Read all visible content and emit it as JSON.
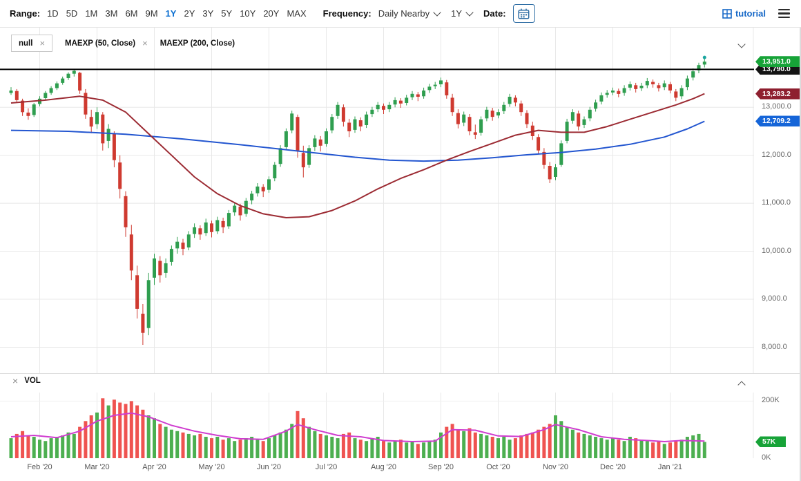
{
  "toolbar": {
    "range_label": "Range:",
    "ranges": [
      "1D",
      "5D",
      "1M",
      "3M",
      "6M",
      "9M",
      "1Y",
      "2Y",
      "3Y",
      "5Y",
      "10Y",
      "20Y",
      "MAX"
    ],
    "active_range": "1Y",
    "frequency_label": "Frequency:",
    "frequency_value": "Daily Nearby",
    "period_value": "1Y",
    "date_label": "Date:",
    "tutorial_label": "tutorial"
  },
  "studies": {
    "main": [
      {
        "label": "null",
        "boxed": true,
        "close": true
      },
      {
        "label": "MAEXP (50, Close)",
        "boxed": false,
        "close": true
      },
      {
        "label": "MAEXP (200, Close)",
        "boxed": false,
        "close": false
      }
    ],
    "volume_label": "VOL"
  },
  "badges": {
    "last_price": {
      "label": "13,951.0",
      "value": 13951,
      "color": "#17a338"
    },
    "hline": {
      "label": "13,790.0",
      "value": 13790,
      "color": "#141414"
    },
    "ma50": {
      "label": "13,283.2",
      "value": 13283.2,
      "color": "#8e1f2f"
    },
    "ma200": {
      "label": "12,709.2",
      "value": 12709.2,
      "color": "#1565d8"
    },
    "volume": {
      "label": "57K",
      "value": 57,
      "color": "#17a338"
    }
  },
  "colors": {
    "up": "#2f9e4f",
    "down": "#cf3a30",
    "vol_up": "#4caf50",
    "vol_down": "#ef5350",
    "ma50": "#9c2b33",
    "ma200": "#2356d0",
    "vol_ma": "#cf3ccf",
    "hline": "#000000",
    "grid": "#e8e8e8",
    "axis_text": "#555555"
  },
  "chart_data": {
    "type": "candlestick",
    "title": "",
    "ylim": [
      7460,
      14660
    ],
    "vol_ylim": [
      0,
      230
    ],
    "hline": 13790,
    "y_ticks": [
      {
        "v": 13000,
        "label": "13,000.0"
      },
      {
        "v": 12000,
        "label": "12,000.0"
      },
      {
        "v": 11000,
        "label": "11,000.0"
      },
      {
        "v": 10000,
        "label": "10,000.0"
      },
      {
        "v": 9000,
        "label": "9,000.0"
      },
      {
        "v": 8000,
        "label": "8,000.0"
      }
    ],
    "vol_ticks": [
      {
        "v": 200,
        "label": "200K"
      },
      {
        "v": 0,
        "label": "0K"
      }
    ],
    "x_ticks": [
      {
        "i": 5,
        "label": "Feb '20"
      },
      {
        "i": 15,
        "label": "Mar '20"
      },
      {
        "i": 25,
        "label": "Apr '20"
      },
      {
        "i": 35,
        "label": "May '20"
      },
      {
        "i": 45,
        "label": "Jun '20"
      },
      {
        "i": 55,
        "label": "Jul '20"
      },
      {
        "i": 65,
        "label": "Aug '20"
      },
      {
        "i": 75,
        "label": "Sep '20"
      },
      {
        "i": 85,
        "label": "Oct '20"
      },
      {
        "i": 95,
        "label": "Nov '20"
      },
      {
        "i": 105,
        "label": "Dec '20"
      },
      {
        "i": 115,
        "label": "Jan '21"
      }
    ],
    "candles": [
      [
        13300,
        13420,
        13260,
        13350
      ],
      [
        13340,
        13380,
        13100,
        13150
      ],
      [
        13140,
        13180,
        12820,
        12900
      ],
      [
        12890,
        12980,
        12740,
        12820
      ],
      [
        12840,
        13090,
        12800,
        13060
      ],
      [
        13070,
        13230,
        13020,
        13180
      ],
      [
        13190,
        13340,
        13150,
        13300
      ],
      [
        13300,
        13440,
        13260,
        13400
      ],
      [
        13400,
        13540,
        13360,
        13500
      ],
      [
        13510,
        13640,
        13470,
        13600
      ],
      [
        13610,
        13730,
        13570,
        13700
      ],
      [
        13700,
        13790,
        13640,
        13760
      ],
      [
        13720,
        13740,
        13280,
        13350
      ],
      [
        13300,
        13380,
        12760,
        12850
      ],
      [
        12800,
        12950,
        12460,
        12600
      ],
      [
        12650,
        13000,
        12550,
        12900
      ],
      [
        12850,
        12900,
        12100,
        12250
      ],
      [
        12300,
        12650,
        12150,
        12550
      ],
      [
        12450,
        12500,
        11750,
        11900
      ],
      [
        11850,
        12000,
        11100,
        11300
      ],
      [
        11150,
        11250,
        10300,
        10500
      ],
      [
        10350,
        10550,
        9400,
        9600
      ],
      [
        9500,
        9700,
        8600,
        8800
      ],
      [
        8700,
        8900,
        8050,
        8300
      ],
      [
        8400,
        9550,
        8250,
        9400
      ],
      [
        9450,
        9950,
        9300,
        9850
      ],
      [
        9800,
        9900,
        9350,
        9500
      ],
      [
        9550,
        9850,
        9450,
        9750
      ],
      [
        9780,
        10120,
        9700,
        10050
      ],
      [
        10060,
        10300,
        9950,
        10200
      ],
      [
        10180,
        10260,
        9920,
        10050
      ],
      [
        10080,
        10420,
        10020,
        10350
      ],
      [
        10360,
        10580,
        10280,
        10500
      ],
      [
        10480,
        10540,
        10240,
        10350
      ],
      [
        10380,
        10680,
        10320,
        10600
      ],
      [
        10580,
        10640,
        10290,
        10400
      ],
      [
        10420,
        10720,
        10360,
        10650
      ],
      [
        10630,
        10700,
        10380,
        10500
      ],
      [
        10520,
        10860,
        10470,
        10800
      ],
      [
        10810,
        11020,
        10740,
        10950
      ],
      [
        10930,
        10990,
        10640,
        10750
      ],
      [
        10780,
        11110,
        10720,
        11050
      ],
      [
        11060,
        11260,
        10980,
        11200
      ],
      [
        11210,
        11420,
        11140,
        11350
      ],
      [
        11340,
        11400,
        11130,
        11250
      ],
      [
        11280,
        11560,
        11220,
        11500
      ],
      [
        11520,
        11860,
        11460,
        11800
      ],
      [
        11820,
        12210,
        11760,
        12150
      ],
      [
        12170,
        12560,
        12110,
        12500
      ],
      [
        12520,
        12930,
        12460,
        12870
      ],
      [
        12800,
        12850,
        11950,
        12100
      ],
      [
        12050,
        12200,
        11540,
        11750
      ],
      [
        11800,
        12210,
        11740,
        12150
      ],
      [
        12170,
        12420,
        12090,
        12350
      ],
      [
        12330,
        12400,
        12080,
        12200
      ],
      [
        12240,
        12560,
        12180,
        12500
      ],
      [
        12520,
        12860,
        12460,
        12800
      ],
      [
        12820,
        13110,
        12760,
        13050
      ],
      [
        13000,
        13060,
        12600,
        12700
      ],
      [
        12680,
        12760,
        12380,
        12500
      ],
      [
        12530,
        12810,
        12470,
        12750
      ],
      [
        12730,
        12790,
        12500,
        12600
      ],
      [
        12630,
        12910,
        12570,
        12850
      ],
      [
        12860,
        13010,
        12800,
        12950
      ],
      [
        12960,
        13110,
        12900,
        13050
      ],
      [
        13030,
        13080,
        12860,
        12950
      ],
      [
        12960,
        13110,
        12900,
        13050
      ],
      [
        13060,
        13210,
        13000,
        13150
      ],
      [
        13140,
        13190,
        12990,
        13080
      ],
      [
        13090,
        13260,
        13040,
        13200
      ],
      [
        13210,
        13340,
        13150,
        13280
      ],
      [
        13270,
        13320,
        13130,
        13220
      ],
      [
        13230,
        13410,
        13180,
        13350
      ],
      [
        13360,
        13490,
        13300,
        13430
      ],
      [
        13440,
        13530,
        13380,
        13470
      ],
      [
        13480,
        13620,
        13420,
        13560
      ],
      [
        13520,
        13570,
        13180,
        13250
      ],
      [
        13200,
        13280,
        12820,
        12900
      ],
      [
        12880,
        12960,
        12560,
        12650
      ],
      [
        12680,
        12910,
        12610,
        12850
      ],
      [
        12800,
        12860,
        12420,
        12500
      ],
      [
        12480,
        12640,
        12340,
        12430
      ],
      [
        12470,
        12810,
        12410,
        12750
      ],
      [
        12770,
        13010,
        12710,
        12950
      ],
      [
        12930,
        12990,
        12720,
        12800
      ],
      [
        12830,
        12960,
        12770,
        12900
      ],
      [
        12920,
        13110,
        12860,
        13050
      ],
      [
        13070,
        13280,
        13010,
        13220
      ],
      [
        13200,
        13250,
        13020,
        13100
      ],
      [
        13080,
        13140,
        12820,
        12900
      ],
      [
        12880,
        12940,
        12570,
        12650
      ],
      [
        12620,
        12700,
        12320,
        12400
      ],
      [
        12380,
        12440,
        12020,
        12100
      ],
      [
        12070,
        12150,
        11720,
        11800
      ],
      [
        11780,
        11860,
        11420,
        11500
      ],
      [
        11550,
        11820,
        11480,
        11750
      ],
      [
        11800,
        12310,
        11760,
        12250
      ],
      [
        12300,
        12760,
        12250,
        12700
      ],
      [
        12720,
        12960,
        12660,
        12900
      ],
      [
        12870,
        12930,
        12520,
        12600
      ],
      [
        12630,
        12810,
        12570,
        12750
      ],
      [
        12770,
        13010,
        12710,
        12950
      ],
      [
        12970,
        13160,
        12910,
        13100
      ],
      [
        13120,
        13310,
        13060,
        13250
      ],
      [
        13260,
        13360,
        13200,
        13300
      ],
      [
        13310,
        13410,
        13250,
        13350
      ],
      [
        13340,
        13390,
        13210,
        13280
      ],
      [
        13300,
        13460,
        13240,
        13400
      ],
      [
        13410,
        13540,
        13350,
        13480
      ],
      [
        13460,
        13510,
        13310,
        13380
      ],
      [
        13400,
        13510,
        13340,
        13450
      ],
      [
        13460,
        13610,
        13400,
        13550
      ],
      [
        13530,
        13580,
        13410,
        13480
      ],
      [
        13460,
        13510,
        13330,
        13400
      ],
      [
        13420,
        13560,
        13360,
        13500
      ],
      [
        13480,
        13530,
        13290,
        13350
      ],
      [
        13330,
        13380,
        13130,
        13200
      ],
      [
        13230,
        13460,
        13170,
        13400
      ],
      [
        13420,
        13660,
        13360,
        13600
      ],
      [
        13620,
        13810,
        13560,
        13750
      ],
      [
        13770,
        13930,
        13710,
        13880
      ],
      [
        13890,
        14010,
        13830,
        13951
      ]
    ],
    "volumes": [
      70,
      85,
      95,
      80,
      75,
      65,
      60,
      70,
      75,
      80,
      90,
      85,
      110,
      130,
      150,
      160,
      210,
      185,
      205,
      195,
      190,
      200,
      185,
      170,
      150,
      140,
      120,
      110,
      100,
      95,
      90,
      85,
      80,
      85,
      75,
      70,
      75,
      65,
      70,
      60,
      65,
      70,
      75,
      65,
      60,
      70,
      80,
      90,
      100,
      120,
      165,
      140,
      110,
      95,
      85,
      80,
      75,
      70,
      85,
      90,
      70,
      65,
      60,
      70,
      75,
      60,
      55,
      60,
      65,
      55,
      60,
      50,
      55,
      60,
      65,
      90,
      110,
      120,
      100,
      95,
      105,
      90,
      85,
      80,
      75,
      70,
      75,
      65,
      70,
      80,
      85,
      90,
      100,
      110,
      120,
      150,
      130,
      110,
      100,
      90,
      85,
      80,
      75,
      70,
      65,
      70,
      65,
      60,
      75,
      70,
      65,
      60,
      55,
      60,
      50,
      55,
      60,
      65,
      75,
      80,
      85,
      57
    ],
    "ma50": {
      "label": "MAEXP (50, Close)",
      "points": [
        [
          0,
          13090
        ],
        [
          6,
          13150
        ],
        [
          12,
          13230
        ],
        [
          16,
          13150
        ],
        [
          20,
          12900
        ],
        [
          24,
          12450
        ],
        [
          28,
          12000
        ],
        [
          32,
          11550
        ],
        [
          36,
          11200
        ],
        [
          40,
          10950
        ],
        [
          44,
          10780
        ],
        [
          48,
          10700
        ],
        [
          52,
          10720
        ],
        [
          56,
          10850
        ],
        [
          60,
          11050
        ],
        [
          64,
          11300
        ],
        [
          68,
          11520
        ],
        [
          72,
          11700
        ],
        [
          76,
          11900
        ],
        [
          80,
          12080
        ],
        [
          84,
          12250
        ],
        [
          88,
          12420
        ],
        [
          92,
          12520
        ],
        [
          96,
          12480
        ],
        [
          100,
          12480
        ],
        [
          104,
          12600
        ],
        [
          108,
          12750
        ],
        [
          112,
          12900
        ],
        [
          116,
          13050
        ],
        [
          119,
          13180
        ],
        [
          121,
          13283
        ]
      ]
    },
    "ma200": {
      "label": "MAEXP (200, Close)",
      "points": [
        [
          0,
          12520
        ],
        [
          10,
          12500
        ],
        [
          20,
          12440
        ],
        [
          30,
          12340
        ],
        [
          40,
          12220
        ],
        [
          50,
          12090
        ],
        [
          60,
          11960
        ],
        [
          66,
          11900
        ],
        [
          72,
          11880
        ],
        [
          78,
          11900
        ],
        [
          84,
          11950
        ],
        [
          90,
          12010
        ],
        [
          96,
          12060
        ],
        [
          102,
          12130
        ],
        [
          108,
          12230
        ],
        [
          114,
          12380
        ],
        [
          118,
          12550
        ],
        [
          121,
          12709
        ]
      ]
    },
    "vol_ma": {
      "points": [
        [
          0,
          75
        ],
        [
          4,
          80
        ],
        [
          8,
          72
        ],
        [
          12,
          95
        ],
        [
          15,
          130
        ],
        [
          18,
          150
        ],
        [
          21,
          158
        ],
        [
          24,
          145
        ],
        [
          28,
          115
        ],
        [
          32,
          95
        ],
        [
          36,
          80
        ],
        [
          40,
          68
        ],
        [
          44,
          66
        ],
        [
          48,
          95
        ],
        [
          50,
          118
        ],
        [
          53,
          100
        ],
        [
          57,
          80
        ],
        [
          61,
          75
        ],
        [
          65,
          62
        ],
        [
          70,
          58
        ],
        [
          74,
          60
        ],
        [
          77,
          100
        ],
        [
          81,
          98
        ],
        [
          85,
          78
        ],
        [
          89,
          76
        ],
        [
          93,
          100
        ],
        [
          95,
          118
        ],
        [
          99,
          100
        ],
        [
          103,
          75
        ],
        [
          107,
          66
        ],
        [
          111,
          62
        ],
        [
          114,
          58
        ],
        [
          117,
          62
        ],
        [
          121,
          60
        ]
      ]
    }
  }
}
